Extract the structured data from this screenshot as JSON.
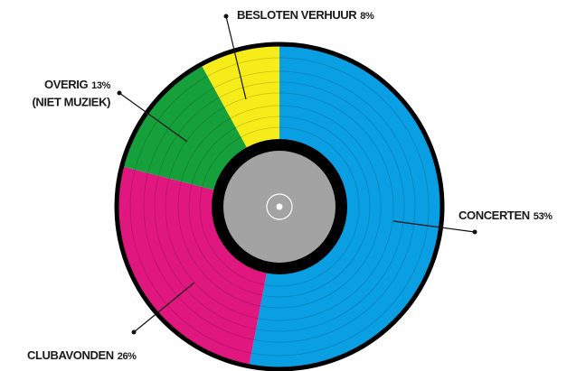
{
  "chart_data": {
    "type": "pie",
    "categories": [
      "CONCERTEN",
      "CLUBAVONDEN",
      "OVERIG",
      "BESLOTEN VERHUUR"
    ],
    "values": [
      53,
      26,
      13,
      8
    ],
    "value_labels": [
      "53%",
      "26%",
      "13%",
      "8%"
    ],
    "colors": [
      "#0a9fe2",
      "#e0177f",
      "#16a03b",
      "#f6ec1a"
    ],
    "annotation": "(NIET MUZIEK)"
  }
}
